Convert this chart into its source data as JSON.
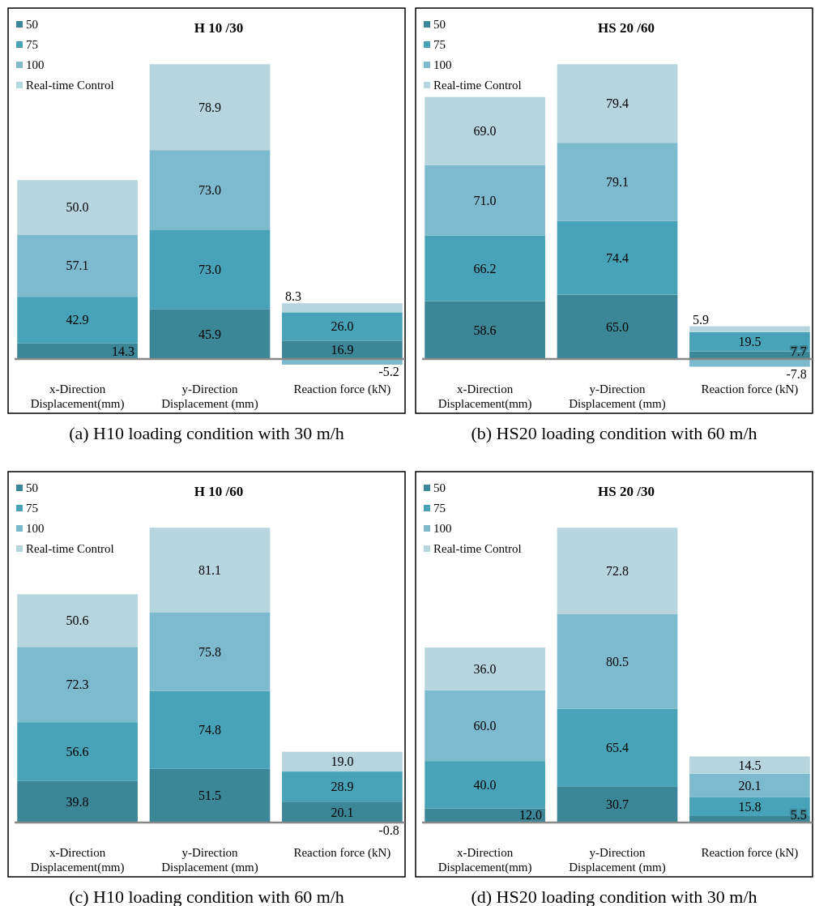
{
  "chart_data": [
    {
      "type": "bar",
      "stacked": true,
      "title": "H 10 /30",
      "categories": [
        "x-Direction Displacement(mm)",
        "y-Direction Displacement (mm)",
        "Reaction force (kN)"
      ],
      "series": [
        {
          "name": "50",
          "color": "#3b8697",
          "values": [
            14.3,
            45.9,
            16.9
          ],
          "value_labels": [
            "14.3",
            "45.9",
            "16.9"
          ]
        },
        {
          "name": "75",
          "color": "#48a3b8",
          "values": [
            42.9,
            73.0,
            26.0
          ],
          "value_labels": [
            "42.9",
            "73.0",
            "26.0"
          ]
        },
        {
          "name": "100",
          "color": "#7dbace",
          "values": [
            57.1,
            73.0,
            -5.2
          ],
          "value_labels": [
            "57.1",
            "73.0",
            "-5.2"
          ]
        },
        {
          "name": "Real-time Control",
          "color": "#b7d5df",
          "values": [
            50.0,
            78.9,
            8.3
          ],
          "value_labels": [
            "50.0",
            "78.9",
            "8.3"
          ]
        }
      ],
      "legend": "top left",
      "annotations": [
        "(a) H10 loading condition with 30 m/h"
      ]
    },
    {
      "type": "bar",
      "stacked": true,
      "title": "HS 20 /60",
      "categories": [
        "x-Direction Displacement(mm)",
        "y-Direction Displacement (mm)",
        "Reaction force (kN)"
      ],
      "series": [
        {
          "name": "50",
          "color": "#3b8697",
          "values": [
            58.6,
            65.0,
            7.7
          ],
          "value_labels": [
            "58.6",
            "65.0",
            "7.7"
          ]
        },
        {
          "name": "75",
          "color": "#48a3b8",
          "values": [
            66.2,
            74.4,
            19.5
          ],
          "value_labels": [
            "66.2",
            "74.4",
            "19.5"
          ]
        },
        {
          "name": "100",
          "color": "#7dbace",
          "values": [
            71.0,
            79.1,
            -7.8
          ],
          "value_labels": [
            "71.0",
            "79.1",
            "-7.8"
          ]
        },
        {
          "name": "Real-time Control",
          "color": "#b7d5df",
          "values": [
            69.0,
            79.4,
            5.9
          ],
          "value_labels": [
            "69.0",
            "79.4",
            "5.9"
          ]
        }
      ],
      "legend": "top left",
      "annotations": [
        "(b) HS20 loading condition with 60 m/h"
      ]
    },
    {
      "type": "bar",
      "stacked": true,
      "title": "H 10 /60",
      "categories": [
        "x-Direction Displacement(mm)",
        "y-Direction Displacement (mm)",
        "Reaction force (kN)"
      ],
      "series": [
        {
          "name": "50",
          "color": "#3b8697",
          "values": [
            39.8,
            51.5,
            20.1
          ],
          "value_labels": [
            "39.8",
            "51.5",
            "20.1"
          ]
        },
        {
          "name": "75",
          "color": "#48a3b8",
          "values": [
            56.6,
            74.8,
            28.9
          ],
          "value_labels": [
            "56.6",
            "74.8",
            "28.9"
          ]
        },
        {
          "name": "100",
          "color": "#7dbace",
          "values": [
            72.3,
            75.8,
            -0.8
          ],
          "value_labels": [
            "72.3",
            "75.8",
            "-0.8"
          ]
        },
        {
          "name": "Real-time Control",
          "color": "#b7d5df",
          "values": [
            50.6,
            81.1,
            19.0
          ],
          "value_labels": [
            "50.6",
            "81.1",
            "19.0"
          ]
        }
      ],
      "legend": "top left",
      "annotations": [
        "(c) H10 loading condition with 60 m/h"
      ]
    },
    {
      "type": "bar",
      "stacked": true,
      "title": "HS 20 /30",
      "categories": [
        "x-Direction Displacement(mm)",
        "y-Direction Displacement (mm)",
        "Reaction force (kN)"
      ],
      "series": [
        {
          "name": "50",
          "color": "#3b8697",
          "values": [
            12.0,
            30.7,
            5.5
          ],
          "value_labels": [
            "12.0",
            "30.7",
            "5.5"
          ]
        },
        {
          "name": "75",
          "color": "#48a3b8",
          "values": [
            40.0,
            65.4,
            15.8
          ],
          "value_labels": [
            "40.0",
            "65.4",
            "15.8"
          ]
        },
        {
          "name": "100",
          "color": "#7dbace",
          "values": [
            60.0,
            80.5,
            20.1
          ],
          "value_labels": [
            "60.0",
            "80.5",
            "20.1"
          ]
        },
        {
          "name": "Real-time Control",
          "color": "#b7d5df",
          "values": [
            36.0,
            72.8,
            14.5
          ],
          "value_labels": [
            "36.0",
            "72.8",
            "14.5"
          ]
        }
      ],
      "legend": "top left",
      "annotations": [
        "(d) HS20 loading condition with 30 m/h"
      ]
    }
  ]
}
